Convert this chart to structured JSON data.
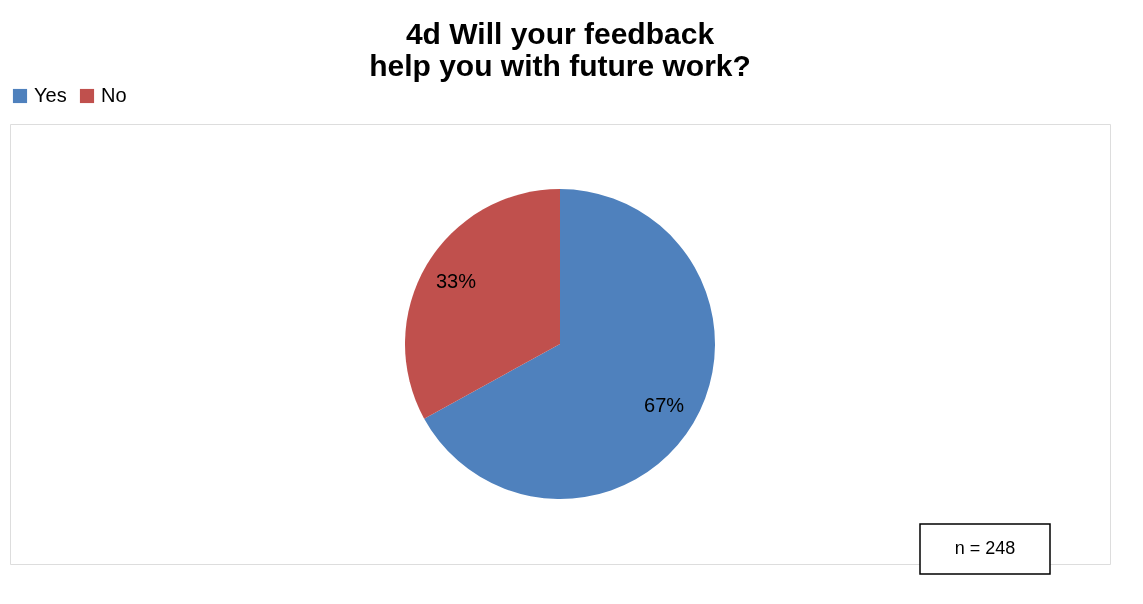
{
  "chart_data": {
    "type": "pie",
    "title": "4d Will your feedback help you with future work?",
    "categories": [
      "Yes",
      "No"
    ],
    "values": [
      67,
      33
    ],
    "colors": [
      "#4f81bd",
      "#c0504d"
    ],
    "value_labels": [
      "67%",
      "33%"
    ],
    "legend": "top",
    "annotations": [
      "n = 248"
    ]
  }
}
